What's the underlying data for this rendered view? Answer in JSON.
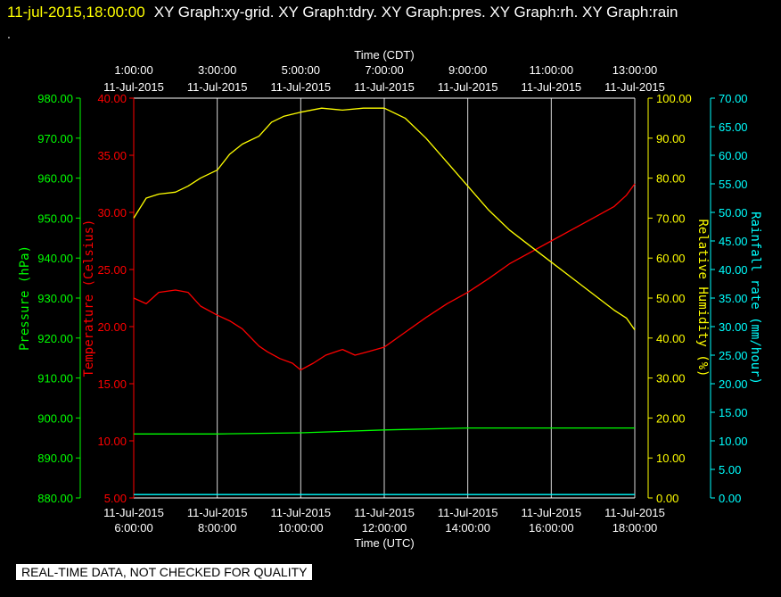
{
  "header": {
    "datetime": "11-jul-2015,18:00:00",
    "titles": "XY Graph:xy-grid.  XY Graph:tdry.  XY Graph:pres.  XY Graph:rh.  XY Graph:rain",
    "extra": "."
  },
  "footer_note": "REAL-TIME DATA, NOT CHECKED FOR QUALITY",
  "colors": {
    "temperature": "#ff0000",
    "humidity": "#ffff00",
    "pressure": "#00ff00",
    "rain": "#00ffff",
    "grid": "#ffffff"
  },
  "chart_data": {
    "type": "line",
    "x_top_label": "Time (CDT)",
    "x_bottom_label": "Time (UTC)",
    "x_top_ticks": [
      [
        "1:00:00",
        "11-Jul-2015"
      ],
      [
        "3:00:00",
        "11-Jul-2015"
      ],
      [
        "5:00:00",
        "11-Jul-2015"
      ],
      [
        "7:00:00",
        "11-Jul-2015"
      ],
      [
        "9:00:00",
        "11-Jul-2015"
      ],
      [
        "11:00:00",
        "11-Jul-2015"
      ],
      [
        "13:00:00",
        "11-Jul-2015"
      ]
    ],
    "x_bottom_ticks": [
      [
        "11-Jul-2015",
        "6:00:00"
      ],
      [
        "11-Jul-2015",
        "8:00:00"
      ],
      [
        "11-Jul-2015",
        "10:00:00"
      ],
      [
        "11-Jul-2015",
        "12:00:00"
      ],
      [
        "11-Jul-2015",
        "14:00:00"
      ],
      [
        "11-Jul-2015",
        "16:00:00"
      ],
      [
        "11-Jul-2015",
        "18:00:00"
      ]
    ],
    "x_range_utc_hours": [
      6,
      18
    ],
    "grid": true,
    "axes": {
      "pressure": {
        "label": "Pressure (hPa)",
        "range": [
          880,
          980
        ],
        "ticks": [
          "880.00",
          "890.00",
          "900.00",
          "910.00",
          "920.00",
          "930.00",
          "940.00",
          "950.00",
          "960.00",
          "970.00",
          "980.00"
        ]
      },
      "temperature": {
        "label": "Temperature (Celsius)",
        "range": [
          5,
          40
        ],
        "ticks": [
          "5.00",
          "10.00",
          "15.00",
          "20.00",
          "25.00",
          "30.00",
          "35.00",
          "40.00"
        ]
      },
      "humidity": {
        "label": "Relative Humidity (%)",
        "range": [
          0,
          100
        ],
        "ticks": [
          "0.00",
          "10.00",
          "20.00",
          "30.00",
          "40.00",
          "50.00",
          "60.00",
          "70.00",
          "80.00",
          "90.00",
          "100.00"
        ]
      },
      "rain": {
        "label": "Rainfall rate (mm/hour)",
        "range": [
          0,
          70
        ],
        "ticks": [
          "0.00",
          "5.00",
          "10.00",
          "15.00",
          "20.00",
          "25.00",
          "30.00",
          "35.00",
          "40.00",
          "45.00",
          "50.00",
          "55.00",
          "60.00",
          "65.00",
          "70.00"
        ]
      }
    },
    "series": [
      {
        "name": "tdry",
        "axis": "temperature",
        "color": "#ff0000",
        "x": [
          6.0,
          6.3,
          6.6,
          7.0,
          7.3,
          7.6,
          8.0,
          8.3,
          8.6,
          9.0,
          9.2,
          9.5,
          9.8,
          10.0,
          10.3,
          10.6,
          11.0,
          11.3,
          11.6,
          12.0,
          12.5,
          13.0,
          13.5,
          14.0,
          14.5,
          15.0,
          15.5,
          16.0,
          16.5,
          17.0,
          17.5,
          17.8,
          18.0
        ],
        "y": [
          22.5,
          22.0,
          23.0,
          23.2,
          23.0,
          21.8,
          21.0,
          20.5,
          19.8,
          18.3,
          17.8,
          17.2,
          16.8,
          16.2,
          16.8,
          17.5,
          18.0,
          17.5,
          17.8,
          18.2,
          19.5,
          20.8,
          22.0,
          23.0,
          24.2,
          25.5,
          26.5,
          27.5,
          28.5,
          29.5,
          30.5,
          31.5,
          32.5
        ]
      },
      {
        "name": "rh",
        "axis": "humidity",
        "color": "#ffff00",
        "x": [
          6.0,
          6.3,
          6.6,
          7.0,
          7.3,
          7.6,
          8.0,
          8.3,
          8.6,
          9.0,
          9.3,
          9.6,
          10.0,
          10.5,
          11.0,
          11.5,
          12.0,
          12.5,
          13.0,
          13.5,
          14.0,
          14.5,
          15.0,
          15.5,
          16.0,
          16.5,
          17.0,
          17.5,
          17.8,
          18.0
        ],
        "y": [
          70.0,
          75.0,
          76.0,
          76.5,
          78.0,
          80.0,
          82.0,
          86.0,
          88.5,
          90.5,
          94.0,
          95.5,
          96.5,
          97.5,
          97.0,
          97.5,
          97.5,
          95.0,
          90.0,
          84.0,
          78.0,
          72.0,
          67.0,
          63.0,
          59.0,
          55.0,
          51.0,
          47.0,
          45.0,
          42.0
        ]
      },
      {
        "name": "pres",
        "axis": "pressure",
        "color": "#00ff00",
        "x": [
          6.0,
          8.0,
          10.0,
          12.0,
          14.0,
          16.0,
          18.0
        ],
        "y": [
          896.0,
          896.0,
          896.3,
          897.0,
          897.5,
          897.5,
          897.5
        ]
      },
      {
        "name": "rain",
        "axis": "rain",
        "color": "#00ffff",
        "x": [
          6.0,
          18.0
        ],
        "y": [
          0.6,
          0.6
        ]
      }
    ]
  }
}
